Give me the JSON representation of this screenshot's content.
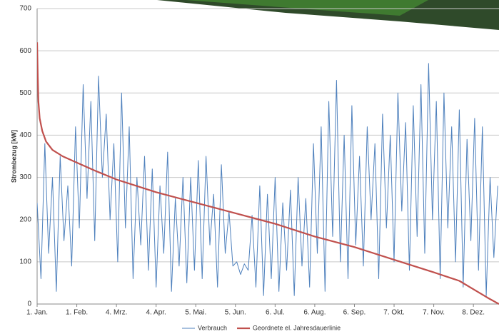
{
  "chart_data": {
    "type": "line",
    "y_label": "Strombezug [kW]",
    "ylim": [
      0,
      700
    ],
    "yticks": [
      0,
      100,
      200,
      300,
      400,
      500,
      600,
      700
    ],
    "xlim": [
      0,
      361
    ],
    "xticks": [
      {
        "value": 0,
        "label": "1. Jan."
      },
      {
        "value": 31,
        "label": "1. Feb."
      },
      {
        "value": 62,
        "label": "4. Mrz."
      },
      {
        "value": 93,
        "label": "4. Apr."
      },
      {
        "value": 124,
        "label": "5. Mai."
      },
      {
        "value": 155,
        "label": "5. Jun."
      },
      {
        "value": 186,
        "label": "6. Jul."
      },
      {
        "value": 217,
        "label": "6. Aug."
      },
      {
        "value": 248,
        "label": "6. Sep."
      },
      {
        "value": 279,
        "label": "7. Okt."
      },
      {
        "value": 310,
        "label": "7. Nov."
      },
      {
        "value": 341,
        "label": "8. Dez."
      }
    ],
    "grid": true,
    "legend": "bottom",
    "series": [
      {
        "name": "Verbrauch",
        "color": "#4f81bd",
        "width": 1,
        "x": [
          0,
          3,
          6,
          9,
          12,
          15,
          18,
          21,
          24,
          27,
          30,
          33,
          36,
          39,
          42,
          45,
          48,
          51,
          54,
          57,
          60,
          63,
          66,
          69,
          72,
          75,
          78,
          81,
          84,
          87,
          90,
          93,
          96,
          99,
          102,
          105,
          108,
          111,
          114,
          117,
          120,
          123,
          126,
          129,
          132,
          135,
          138,
          141,
          144,
          147,
          150,
          153,
          156,
          159,
          162,
          165,
          168,
          171,
          174,
          177,
          180,
          183,
          186,
          189,
          192,
          195,
          198,
          201,
          204,
          207,
          210,
          213,
          216,
          219,
          222,
          225,
          228,
          231,
          234,
          237,
          240,
          243,
          246,
          249,
          252,
          255,
          258,
          261,
          264,
          267,
          270,
          273,
          276,
          279,
          282,
          285,
          288,
          291,
          294,
          297,
          300,
          303,
          306,
          309,
          312,
          315,
          318,
          321,
          324,
          327,
          330,
          333,
          336,
          339,
          342,
          345,
          348,
          351,
          354,
          357,
          360
        ],
        "values": [
          240,
          60,
          380,
          120,
          300,
          30,
          350,
          150,
          280,
          90,
          420,
          180,
          520,
          250,
          480,
          150,
          540,
          300,
          450,
          200,
          380,
          100,
          500,
          180,
          420,
          60,
          300,
          140,
          350,
          80,
          320,
          40,
          280,
          120,
          360,
          30,
          250,
          90,
          300,
          50,
          300,
          80,
          340,
          60,
          350,
          140,
          260,
          40,
          330,
          120,
          220,
          90,
          100,
          70,
          95,
          80,
          210,
          40,
          280,
          20,
          260,
          60,
          300,
          30,
          240,
          80,
          270,
          20,
          300,
          90,
          250,
          40,
          380,
          120,
          420,
          30,
          480,
          160,
          530,
          100,
          400,
          60,
          470,
          140,
          350,
          90,
          420,
          200,
          380,
          60,
          450,
          180,
          400,
          100,
          500,
          220,
          430,
          80,
          470,
          160,
          520,
          120,
          570,
          200,
          480,
          60,
          500,
          180,
          420,
          100,
          460,
          40,
          390,
          150,
          440,
          80,
          420,
          20,
          300,
          110,
          280
        ]
      },
      {
        "name": "Geordnete el. Jahresdauerlinie",
        "color": "#c0504d",
        "width": 2.2,
        "x": [
          0,
          0.5,
          1,
          2,
          4,
          7,
          12,
          20,
          31,
          46,
          62,
          93,
          124,
          155,
          186,
          217,
          248,
          279,
          310,
          330,
          341,
          352,
          361
        ],
        "values": [
          620,
          540,
          480,
          440,
          410,
          385,
          365,
          350,
          335,
          315,
          295,
          265,
          240,
          215,
          190,
          160,
          135,
          105,
          75,
          55,
          35,
          15,
          0
        ]
      }
    ]
  }
}
